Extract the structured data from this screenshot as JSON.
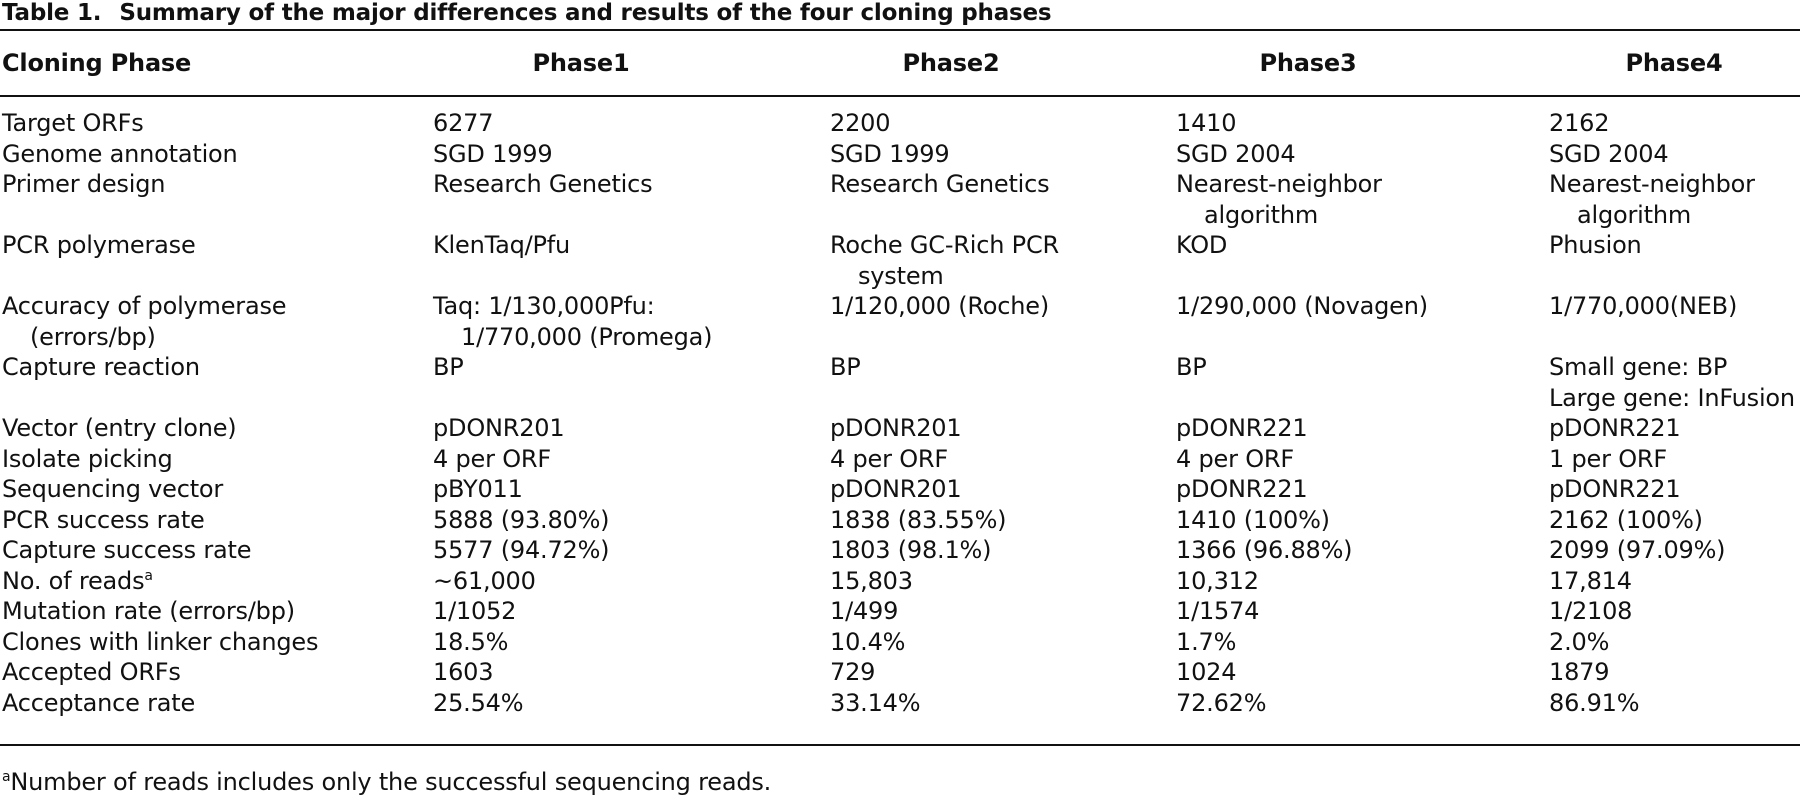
{
  "caption": {
    "label": "Table 1.",
    "title": "Summary of the major differences and results of the four cloning phases"
  },
  "header": {
    "first": "Cloning Phase",
    "phases": [
      "Phase1",
      "Phase2",
      "Phase3",
      "Phase4"
    ]
  },
  "rows": [
    {
      "label": [
        "Target ORFs"
      ],
      "values": [
        [
          "6277"
        ],
        [
          "2200"
        ],
        [
          "1410"
        ],
        [
          "2162"
        ]
      ]
    },
    {
      "label": [
        "Genome annotation"
      ],
      "values": [
        [
          "SGD 1999"
        ],
        [
          "SGD 1999"
        ],
        [
          "SGD 2004"
        ],
        [
          "SGD 2004"
        ]
      ]
    },
    {
      "label": [
        "Primer design"
      ],
      "values": [
        [
          "Research Genetics"
        ],
        [
          "Research Genetics"
        ],
        [
          "Nearest-neighbor",
          "algorithm"
        ],
        [
          "Nearest-neighbor",
          "algorithm"
        ]
      ]
    },
    {
      "label": [
        "PCR polymerase"
      ],
      "values": [
        [
          "KlenTaq/Pfu"
        ],
        [
          "Roche GC-Rich PCR",
          "system"
        ],
        [
          "KOD"
        ],
        [
          "Phusion"
        ]
      ]
    },
    {
      "label": [
        "Accuracy of polymerase",
        "(errors/bp)"
      ],
      "values": [
        [
          "Taq: 1/130,000Pfu:",
          "1/770,000 (Promega)"
        ],
        [
          "1/120,000 (Roche)"
        ],
        [
          "1/290,000 (Novagen)"
        ],
        [
          "1/770,000(NEB)"
        ]
      ]
    },
    {
      "label": [
        "Capture reaction"
      ],
      "values": [
        [
          "BP"
        ],
        [
          "BP"
        ],
        [
          "BP"
        ],
        [
          "Small gene: BP",
          "Large gene: InFusion"
        ]
      ]
    },
    {
      "label": [
        "Vector (entry clone)"
      ],
      "values": [
        [
          "pDONR201"
        ],
        [
          "pDONR201"
        ],
        [
          "pDONR221"
        ],
        [
          "pDONR221"
        ]
      ]
    },
    {
      "label": [
        "Isolate picking"
      ],
      "values": [
        [
          "4 per ORF"
        ],
        [
          "4 per ORF"
        ],
        [
          "4 per ORF"
        ],
        [
          "1 per ORF"
        ]
      ]
    },
    {
      "label": [
        "Sequencing vector"
      ],
      "values": [
        [
          "pBY011"
        ],
        [
          "pDONR201"
        ],
        [
          "pDONR221"
        ],
        [
          "pDONR221"
        ]
      ]
    },
    {
      "label": [
        "PCR success rate"
      ],
      "values": [
        [
          "5888 (93.80%)"
        ],
        [
          "1838 (83.55%)"
        ],
        [
          "1410 (100%)"
        ],
        [
          "2162 (100%)"
        ]
      ]
    },
    {
      "label": [
        "Capture success rate"
      ],
      "values": [
        [
          "5577 (94.72%)"
        ],
        [
          "1803 (98.1%)"
        ],
        [
          "1366 (96.88%)"
        ],
        [
          "2099 (97.09%)"
        ]
      ]
    },
    {
      "label": [
        "No. of reads"
      ],
      "label_sup": "a",
      "values": [
        [
          "~61,000"
        ],
        [
          "15,803"
        ],
        [
          "10,312"
        ],
        [
          "17,814"
        ]
      ]
    },
    {
      "label": [
        "Mutation rate (errors/bp)"
      ],
      "values": [
        [
          "1/1052"
        ],
        [
          "1/499"
        ],
        [
          "1/1574"
        ],
        [
          "1/2108"
        ]
      ]
    },
    {
      "label": [
        "Clones with linker changes"
      ],
      "values": [
        [
          "18.5%"
        ],
        [
          "10.4%"
        ],
        [
          "1.7%"
        ],
        [
          "2.0%"
        ]
      ]
    },
    {
      "label": [
        "Accepted ORFs"
      ],
      "values": [
        [
          "1603"
        ],
        [
          "729"
        ],
        [
          "1024"
        ],
        [
          "1879"
        ]
      ]
    },
    {
      "label": [
        "Acceptance rate"
      ],
      "values": [
        [
          "25.54%"
        ],
        [
          "33.14%"
        ],
        [
          "72.62%"
        ],
        [
          "86.91%"
        ]
      ]
    }
  ],
  "footnote": {
    "marker": "a",
    "text": "Number of reads includes only the successful sequencing reads."
  }
}
